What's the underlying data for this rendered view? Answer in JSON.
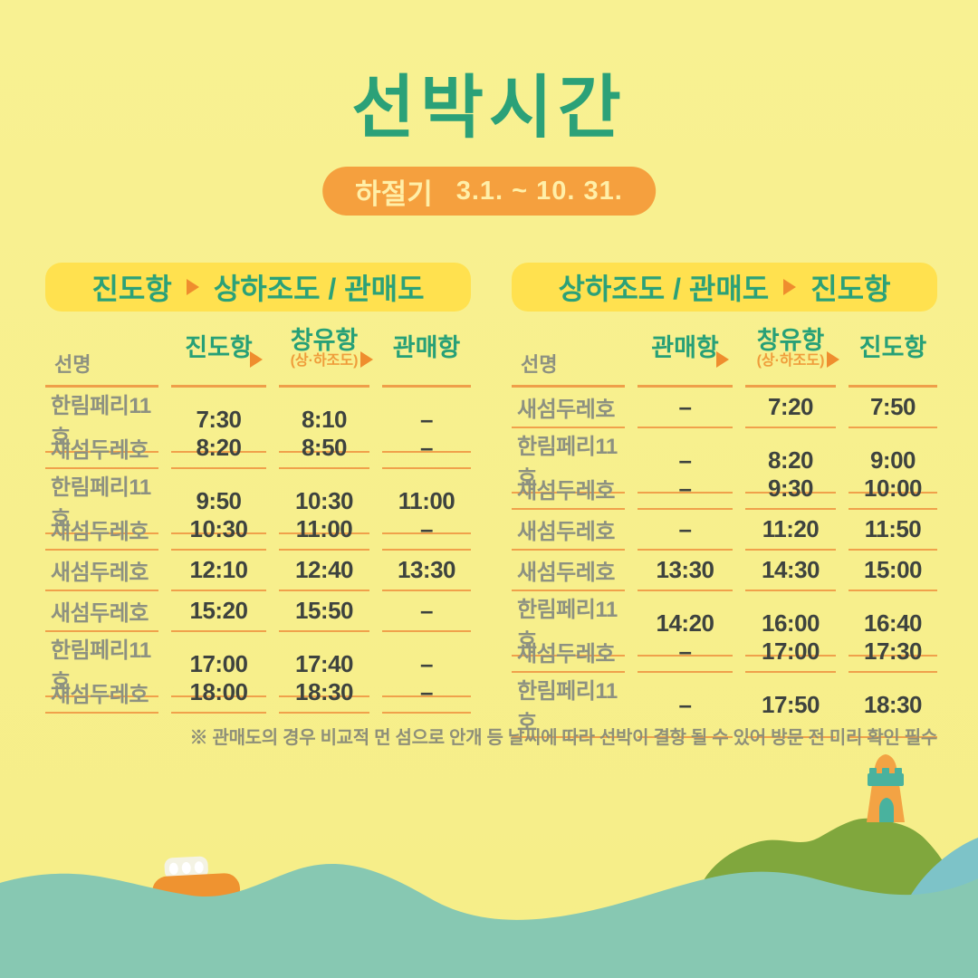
{
  "title": "선박시간",
  "season_badge": {
    "label": "하절기",
    "range": "3.1. ~ 10. 31."
  },
  "tables": [
    {
      "banner": {
        "from": "진도항",
        "to": "상하조도 / 관매도"
      },
      "columns": {
        "name": "선명",
        "stops": [
          {
            "label": "진도항",
            "sub": ""
          },
          {
            "label": "창유항",
            "sub": "(상·하조도)"
          },
          {
            "label": "관매항",
            "sub": ""
          }
        ]
      },
      "rows": [
        {
          "name": "한림페리11호",
          "times": [
            "7:30",
            "8:10",
            "–"
          ]
        },
        {
          "name": "새섬두레호",
          "times": [
            "8:20",
            "8:50",
            "–"
          ]
        },
        {
          "name": "한림페리11호",
          "times": [
            "9:50",
            "10:30",
            "11:00"
          ]
        },
        {
          "name": "새섬두레호",
          "times": [
            "10:30",
            "11:00",
            "–"
          ]
        },
        {
          "name": "새섬두레호",
          "times": [
            "12:10",
            "12:40",
            "13:30"
          ]
        },
        {
          "name": "새섬두레호",
          "times": [
            "15:20",
            "15:50",
            "–"
          ]
        },
        {
          "name": "한림페리11호",
          "times": [
            "17:00",
            "17:40",
            "–"
          ]
        },
        {
          "name": "새섬두레호",
          "times": [
            "18:00",
            "18:30",
            "–"
          ]
        }
      ]
    },
    {
      "banner": {
        "from": "상하조도 / 관매도",
        "to": "진도항"
      },
      "columns": {
        "name": "선명",
        "stops": [
          {
            "label": "관매항",
            "sub": ""
          },
          {
            "label": "창유항",
            "sub": "(상·하조도)"
          },
          {
            "label": "진도항",
            "sub": ""
          }
        ]
      },
      "rows": [
        {
          "name": "새섬두레호",
          "times": [
            "–",
            "7:20",
            "7:50"
          ]
        },
        {
          "name": "한림페리11호",
          "times": [
            "–",
            "8:20",
            "9:00"
          ]
        },
        {
          "name": "새섬두레호",
          "times": [
            "–",
            "9:30",
            "10:00"
          ]
        },
        {
          "name": "새섬두레호",
          "times": [
            "–",
            "11:20",
            "11:50"
          ]
        },
        {
          "name": "새섬두레호",
          "times": [
            "13:30",
            "14:30",
            "15:00"
          ]
        },
        {
          "name": "한림페리11호",
          "times": [
            "14:20",
            "16:00",
            "16:40"
          ]
        },
        {
          "name": "새섬두레호",
          "times": [
            "–",
            "17:00",
            "17:30"
          ]
        },
        {
          "name": "한림페리11호",
          "times": [
            "–",
            "17:50",
            "18:30"
          ]
        }
      ]
    }
  ],
  "footnote": "※ 관매도의 경우 비교적 먼 섬으로 안개 등 날씨에 따라 선박이 결항 될 수 있어 방문 전 미리 확인 필수",
  "icons": {
    "arrow": "right-triangle-arrow",
    "boat": "orange-ferry-boat",
    "island": "green-island",
    "lighthouse": "orange-lighthouse"
  },
  "colors": {
    "background": "#f7ef8c",
    "title_green": "#2ba178",
    "badge_orange": "#f5a03e",
    "badge_text": "#ffefa8",
    "banner_yellow": "#ffe14f",
    "arrow_orange": "#ef8d2e",
    "header_sub_orange": "#ef9d3b",
    "separator_orange": "#f0a14b",
    "ship_name_gray": "#8d9181",
    "time_dark": "#3e433f",
    "footnote_gray": "#8e8f79",
    "wave_teal": "#87c8b2",
    "wave_blue": "#7dc3c8",
    "island_green": "#80a73d",
    "island_brown": "#a5894e",
    "lighthouse_orange": "#f3a344",
    "lighthouse_teal": "#49b29e"
  }
}
